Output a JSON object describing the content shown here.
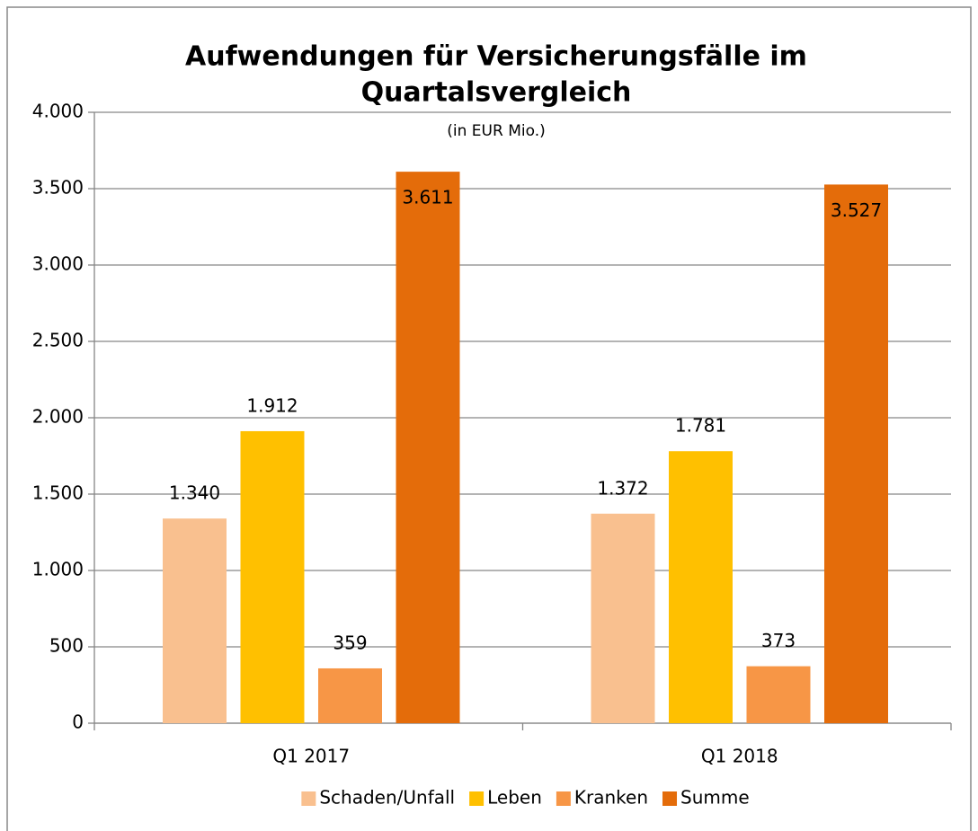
{
  "chart_data": {
    "type": "bar",
    "title": [
      "Aufwendungen für Versicherungsfälle im",
      "Quartalsvergleich"
    ],
    "subtitle": "(in EUR Mio.)",
    "categories": [
      "Q1 2017",
      "Q1 2018"
    ],
    "series": [
      {
        "name": "Schaden/Unfall",
        "color": "#F9C08F",
        "values": [
          1340,
          1372
        ],
        "value_labels": [
          "1.340",
          "1.372"
        ]
      },
      {
        "name": "Leben",
        "color": "#FFC000",
        "values": [
          1912,
          1781
        ],
        "value_labels": [
          "1.912",
          "1.781"
        ]
      },
      {
        "name": "Kranken",
        "color": "#F79646",
        "values": [
          359,
          373
        ],
        "value_labels": [
          "359",
          "373"
        ]
      },
      {
        "name": "Summe",
        "color": "#E46C0A",
        "values": [
          3611,
          3527
        ],
        "value_labels": [
          "3.611",
          "3.527"
        ]
      }
    ],
    "ylim": [
      0,
      4000
    ],
    "yticks": [
      0,
      500,
      {
        "value": 1000,
        "label": "1.000"
      },
      {
        "value": 1500,
        "label": "1.500"
      },
      {
        "value": 2000,
        "label": "2.000"
      },
      {
        "value": 2500,
        "label": "2.500"
      },
      {
        "value": 3000,
        "label": "3.000"
      },
      {
        "value": 3500,
        "label": "3.500"
      },
      {
        "value": 4000,
        "label": "4.000"
      }
    ],
    "grid": true,
    "legend": "bottom"
  }
}
